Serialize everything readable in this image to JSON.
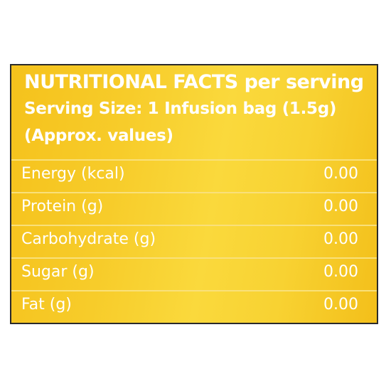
{
  "header": {
    "title_bold": "NUTRITIONAL FACTS",
    "title_rest": "per serving",
    "serving_size": "Serving Size: 1 Infusion bag (1.5g)",
    "approx_note": "(Approx. values)"
  },
  "rows": [
    {
      "label": "Energy (kcal)",
      "value": "0.00"
    },
    {
      "label": "Protein (g)",
      "value": "0.00"
    },
    {
      "label": "Carbohydrate (g)",
      "value": "0.00"
    },
    {
      "label": "Sugar (g)",
      "value": "0.00"
    },
    {
      "label": "Fat (g)",
      "value": "0.00"
    }
  ],
  "colors": {
    "background": "#f7cc2a",
    "text": "#ffffff",
    "row_divider": "#f9e07a",
    "border": "#2a2a2a"
  }
}
